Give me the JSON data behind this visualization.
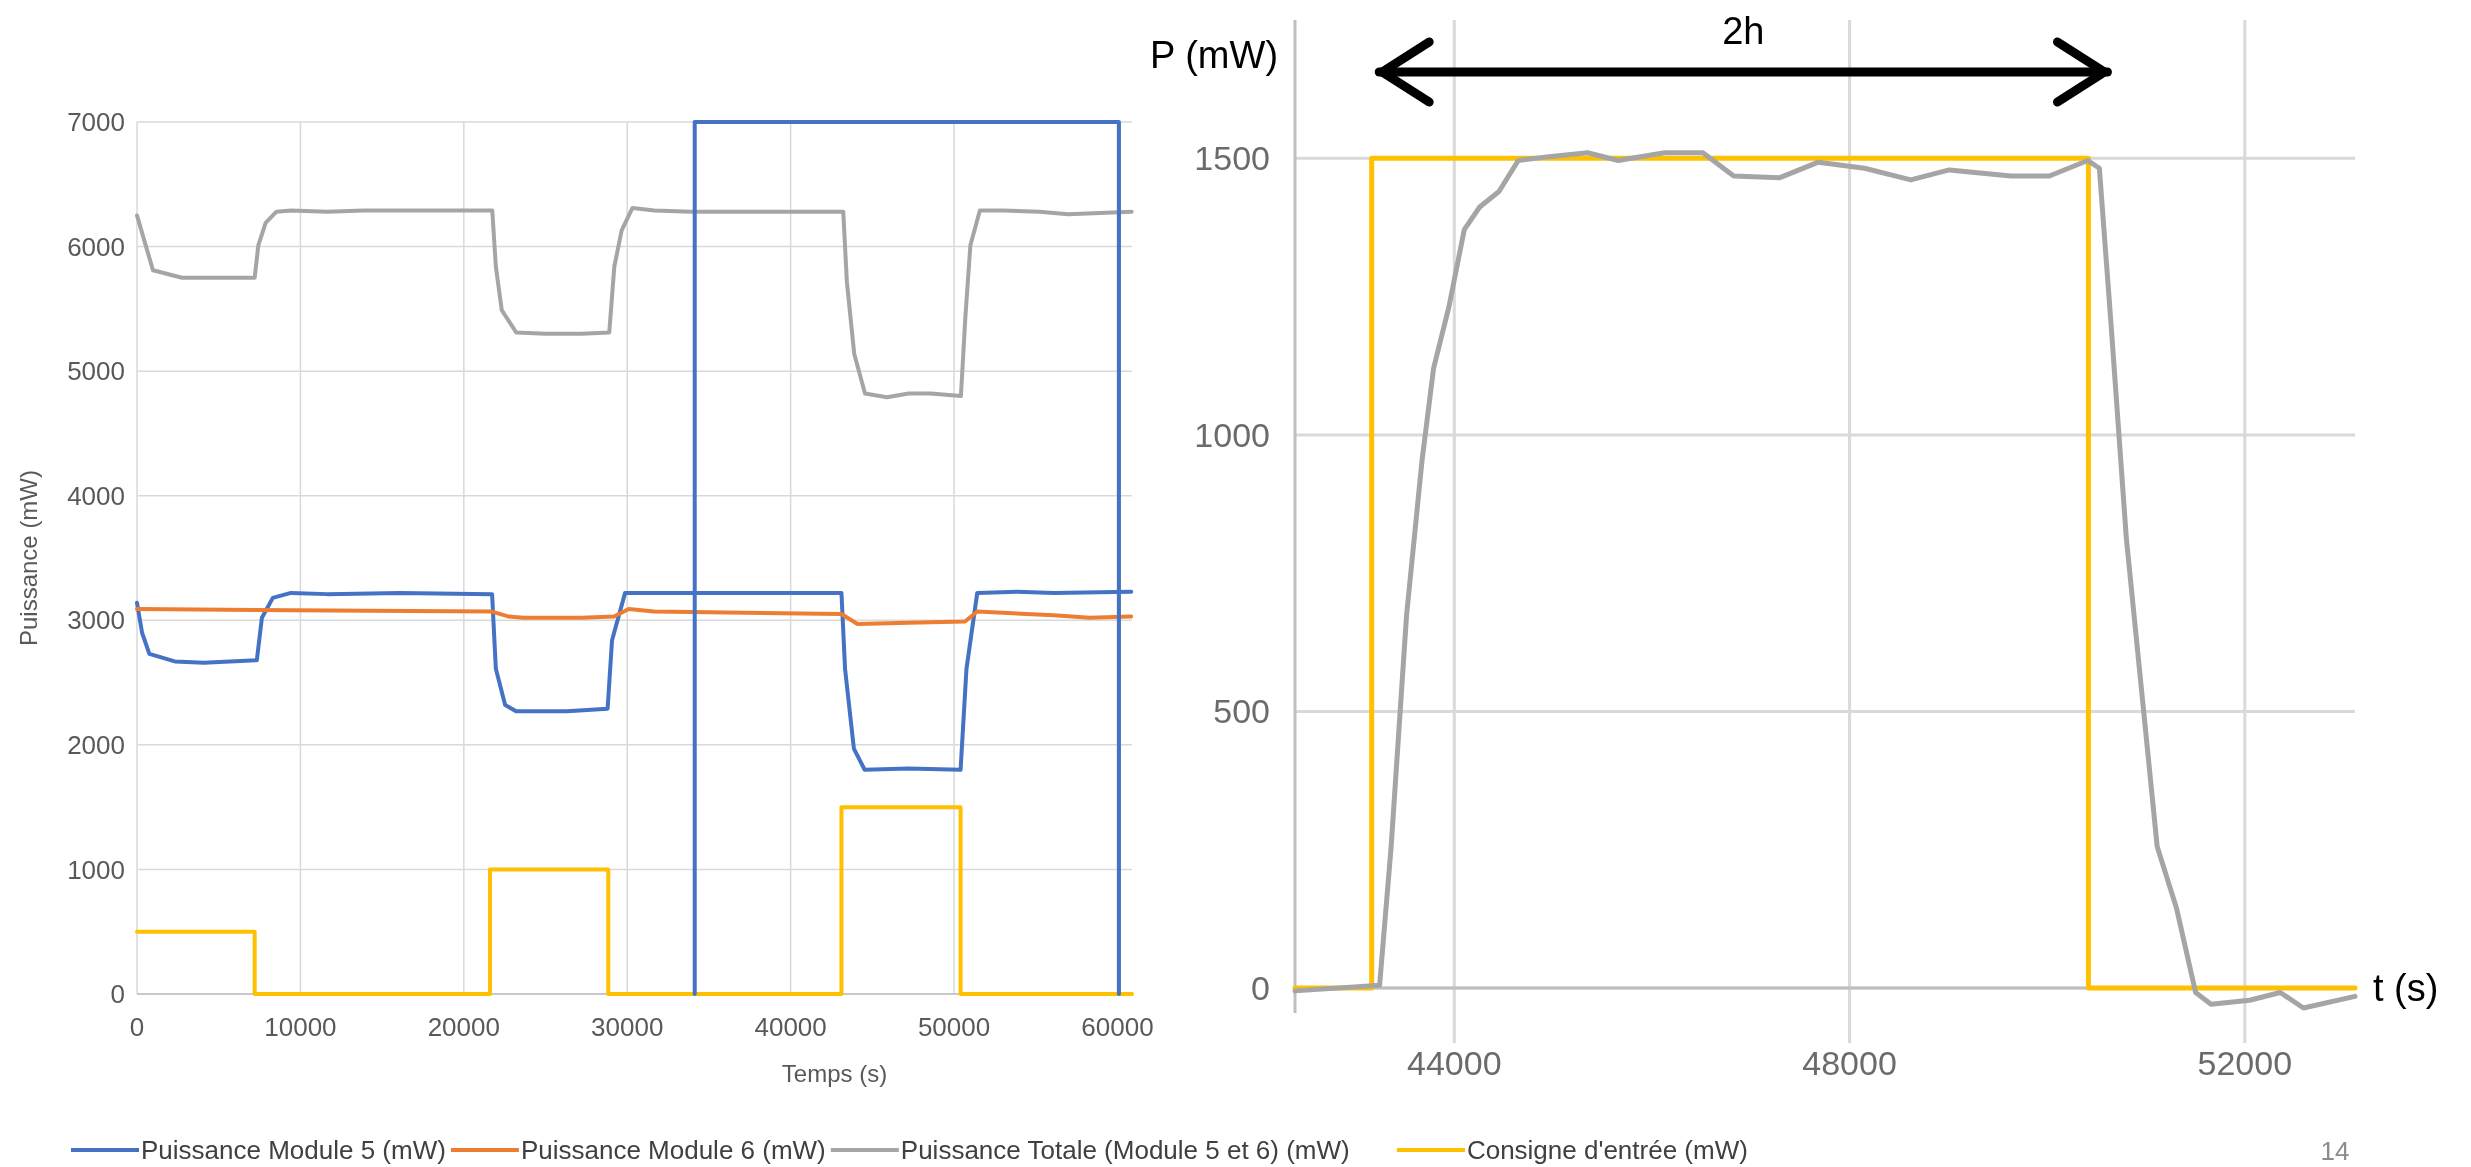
{
  "chart_data": [
    {
      "type": "line",
      "xlabel": "Temps (s)",
      "ylabel": "Puissance (mW)",
      "xlim": [
        0,
        60890
      ],
      "ylim": [
        0,
        7000
      ],
      "xticks": [
        0,
        10000,
        20000,
        30000,
        40000,
        50000,
        60000
      ],
      "yticks": [
        0,
        1000,
        2000,
        3000,
        4000,
        5000,
        6000,
        7000
      ],
      "grid": true,
      "legend": "bottom",
      "line_style": "solid",
      "marker": "none",
      "series": [
        {
          "name": "Puissance Module 5 (mW)",
          "color": "#4472c4",
          "x": [
            0,
            311,
            756,
            2311,
            4089,
            7333,
            7644,
            8311,
            9422,
            11640,
            16090,
            21730,
            21960,
            22530,
            23200,
            26310,
            28800,
            29070,
            29870,
            31640,
            36090,
            43110,
            43330,
            43870,
            44530,
            47200,
            50400,
            50760,
            51420,
            53870,
            56090,
            60840
          ],
          "values": [
            3140,
            2900,
            2730,
            2670,
            2660,
            2680,
            3020,
            3180,
            3220,
            3210,
            3220,
            3210,
            2610,
            2320,
            2270,
            2270,
            2290,
            2840,
            3220,
            3220,
            3220,
            3220,
            2610,
            1970,
            1800,
            1810,
            1800,
            2610,
            3220,
            3230,
            3220,
            3230
          ]
        },
        {
          "name": "Puissance Module 6 (mW)",
          "color": "#ed7d31",
          "x": [
            0,
            9422,
            21730,
            22760,
            23640,
            27200,
            29200,
            30090,
            31640,
            43110,
            44090,
            47200,
            50670,
            51420,
            56090,
            58310,
            60840
          ],
          "values": [
            3090,
            3080,
            3070,
            3030,
            3020,
            3020,
            3030,
            3090,
            3070,
            3050,
            2970,
            2980,
            2990,
            3070,
            3040,
            3020,
            3030
          ]
        },
        {
          "name": "Puissance Totale (Module 5 et 6) (mW)",
          "color": "#a5a5a5",
          "x": [
            0,
            533,
            978,
            1867,
            2756,
            4980,
            7200,
            7425,
            7870,
            8537,
            9426,
            11650,
            13870,
            18320,
            21740,
            21960,
            22320,
            23210,
            24990,
            27210,
            28900,
            29210,
            29660,
            30320,
            31660,
            33880,
            36100,
            40550,
            43220,
            43440,
            43890,
            44550,
            45890,
            47220,
            48560,
            50420,
            50690,
            51000,
            51580,
            53000,
            55220,
            57000,
            60870
          ],
          "values": [
            6250,
            6010,
            5810,
            5780,
            5750,
            5750,
            5750,
            6010,
            6190,
            6280,
            6290,
            6280,
            6290,
            6290,
            6290,
            5840,
            5490,
            5310,
            5300,
            5300,
            5310,
            5840,
            6130,
            6310,
            6290,
            6280,
            6280,
            6280,
            6280,
            5720,
            5140,
            4820,
            4790,
            4820,
            4820,
            4800,
            5430,
            6010,
            6290,
            6290,
            6280,
            6260,
            6280
          ]
        },
        {
          "name": "Consigne d'entrée (mW)",
          "color": "#ffc000",
          "x": [
            0,
            7200,
            7200,
            21600,
            21600,
            28840,
            28840,
            43110,
            43110,
            50400,
            50400,
            60890
          ],
          "values": [
            500,
            500,
            0,
            0,
            1000,
            1000,
            0,
            0,
            1500,
            1500,
            0,
            0
          ]
        },
        {
          "color": "#4472c4",
          "x": [
            34130,
            34130,
            60090,
            60090
          ],
          "values": [
            0,
            7000,
            7000,
            0
          ]
        }
      ]
    },
    {
      "type": "line",
      "xlabel": "t (s)",
      "ylabel": "P (mW)",
      "xlim": [
        42388,
        53115
      ],
      "ylim": [
        -45,
        1750
      ],
      "xticks": [
        44000,
        48000,
        52000
      ],
      "yticks": [
        0,
        500,
        1000,
        1500
      ],
      "grid": true,
      "legend": false,
      "line_style": "solid",
      "marker": "none",
      "annotations": [
        {
          "text": "2h",
          "x": 46925,
          "y": 1656
        },
        "14"
      ],
      "series": [
        {
          "color": "#ffc000",
          "x": [
            42388,
            43164,
            43164,
            50417,
            50417,
            53115
          ],
          "values": [
            0,
            0,
            1500,
            1500,
            0,
            0
          ]
        },
        {
          "color": "#a5a5a5",
          "x": [
            42388,
            43244,
            43361,
            43517,
            43673,
            43790,
            43945,
            44101,
            44257,
            44452,
            44647,
            44958,
            45348,
            45659,
            46127,
            46516,
            46828,
            47295,
            47684,
            48152,
            48620,
            49009,
            49632,
            50022,
            50411,
            50528,
            50645,
            50801,
            50957,
            51113,
            51308,
            51502,
            51658,
            52048,
            52359,
            52593,
            53115
          ],
          "values": [
            -5,
            5,
            256,
            674,
            953,
            1120,
            1231,
            1371,
            1412,
            1440,
            1496,
            1503,
            1510,
            1496,
            1510,
            1510,
            1468,
            1465,
            1493,
            1482,
            1461,
            1479,
            1468,
            1468,
            1496,
            1482,
            1203,
            813,
            535,
            256,
            145,
            -8,
            -29,
            -22,
            -8,
            -36,
            -15
          ]
        },
        {
          "color": "#000000",
          "x": [
            43240,
            50610
          ],
          "values": [
            1656,
            1656
          ]
        }
      ]
    }
  ]
}
